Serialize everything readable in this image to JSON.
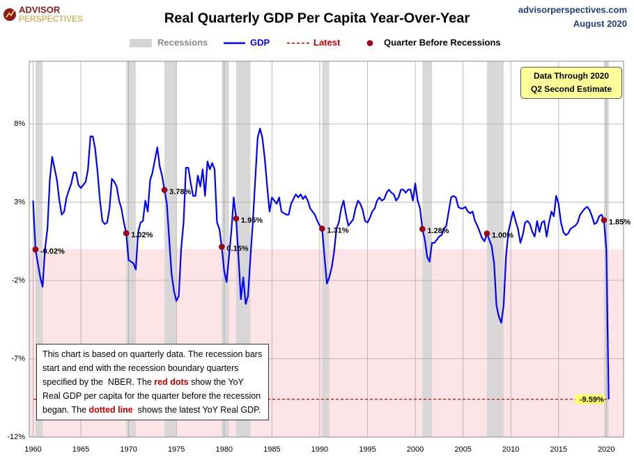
{
  "chart_data": {
    "type": "line",
    "title": "Real Quarterly GDP Per Capita Year-Over-Year",
    "logo": [
      "ADVISOR",
      "PERSPECTIVES"
    ],
    "source": "advisorperspectives.com",
    "date": "August 2020",
    "annotation": [
      "Data Through 2020",
      "Q2 Second Estimate"
    ],
    "note": [
      "This chart is based on quarterly data. The recession bars start and end with the recession boundary quarters specified by the  NBER. The ",
      "red dots",
      " show the YoY Real GDP per capita for the quarter before the recession began. The ",
      "dotted line",
      "  shows the latest YoY Real GDP."
    ],
    "xlim": [
      1959.6,
      2021.8
    ],
    "xticks": [
      1960,
      1965,
      1970,
      1975,
      1980,
      1985,
      1990,
      1995,
      2000,
      2005,
      2010,
      2015,
      2020
    ],
    "ylim": [
      -12,
      12
    ],
    "yticks": [
      {
        "value": -12,
        "label": "-12%"
      },
      {
        "value": -7,
        "label": "-7%"
      },
      {
        "value": -2,
        "label": "-2%"
      },
      {
        "value": 3,
        "label": "3%"
      },
      {
        "value": 8,
        "label": "8%"
      }
    ],
    "grid": true,
    "negative_shade": "#fde4e6",
    "recessions": {
      "name": "Recessions",
      "color": "#d4d4d4",
      "spans": [
        [
          1960.25,
          1961
        ],
        [
          1969.75,
          1970.75
        ],
        [
          1973.75,
          1975
        ],
        [
          1979.75,
          1980.5
        ],
        [
          1981.25,
          1982.75
        ],
        [
          1990.25,
          1991
        ],
        [
          2000.75,
          2001.75
        ],
        [
          2007.5,
          2009.25
        ],
        [
          2019.75,
          2020.25
        ]
      ]
    },
    "series": [
      {
        "name": "GDP",
        "color": "#0000ff",
        "x": [
          1960,
          1960.25,
          1960.75,
          1961,
          1961.25,
          1961.5,
          1961.75,
          1962,
          1962.5,
          1962.75,
          1963,
          1963.25,
          1963.5,
          1964,
          1964.25,
          1964.5,
          1964.75,
          1965,
          1965.5,
          1965.75,
          1966,
          1966.25,
          1966.5,
          1966.75,
          1967,
          1967.25,
          1967.5,
          1967.75,
          1968,
          1968.25,
          1968.5,
          1968.75,
          1969,
          1969.25,
          1969.5,
          1969.75,
          1970,
          1970.25,
          1970.5,
          1970.75,
          1971,
          1971.25,
          1971.5,
          1971.75,
          1972,
          1972.25,
          1972.5,
          1972.75,
          1973,
          1973.25,
          1973.5,
          1973.75,
          1974,
          1974.25,
          1974.5,
          1974.75,
          1975,
          1975.25,
          1975.5,
          1975.75,
          1976,
          1976.25,
          1976.5,
          1976.75,
          1977,
          1977.25,
          1977.5,
          1977.75,
          1978,
          1978.25,
          1978.5,
          1978.75,
          1979,
          1979.25,
          1979.5,
          1979.75,
          1980,
          1980.25,
          1980.5,
          1980.75,
          1981,
          1981.25,
          1981.5,
          1981.75,
          1982,
          1982.25,
          1982.5,
          1982.75,
          1983,
          1983.25,
          1983.5,
          1983.75,
          1984,
          1984.25,
          1984.5,
          1984.75,
          1985,
          1985.25,
          1985.5,
          1985.75,
          1986,
          1986.25,
          1986.5,
          1986.75,
          1987,
          1987.25,
          1987.5,
          1987.75,
          1988,
          1988.25,
          1988.5,
          1988.75,
          1989,
          1989.25,
          1989.5,
          1989.75,
          1990,
          1990.25,
          1990.5,
          1990.75,
          1991,
          1991.25,
          1991.5,
          1991.75,
          1992,
          1992.25,
          1992.5,
          1992.75,
          1993,
          1993.25,
          1993.5,
          1993.75,
          1994,
          1994.25,
          1994.5,
          1994.75,
          1995,
          1995.25,
          1995.5,
          1995.75,
          1996,
          1996.25,
          1996.5,
          1996.75,
          1997,
          1997.25,
          1997.5,
          1997.75,
          1998,
          1998.25,
          1998.5,
          1998.75,
          1999,
          1999.25,
          1999.5,
          1999.75,
          2000,
          2000.25,
          2000.5,
          2000.75,
          2001,
          2001.25,
          2001.5,
          2001.75,
          2002,
          2002.25,
          2002.5,
          2002.75,
          2003,
          2003.25,
          2003.5,
          2003.75,
          2004,
          2004.25,
          2004.5,
          2004.75,
          2005,
          2005.25,
          2005.5,
          2005.75,
          2006,
          2006.25,
          2006.5,
          2006.75,
          2007,
          2007.25,
          2007.5,
          2007.75,
          2008,
          2008.25,
          2008.5,
          2008.75,
          2009,
          2009.25,
          2009.5,
          2009.75,
          2010,
          2010.25,
          2010.5,
          2010.75,
          2011,
          2011.25,
          2011.5,
          2011.75,
          2012,
          2012.25,
          2012.5,
          2012.75,
          2013,
          2013.25,
          2013.5,
          2013.75,
          2014,
          2014.25,
          2014.5,
          2014.75,
          2015,
          2015.25,
          2015.5,
          2015.75,
          2016,
          2016.25,
          2016.5,
          2016.75,
          2017,
          2017.25,
          2017.5,
          2017.75,
          2018,
          2018.25,
          2018.5,
          2018.75,
          2019,
          2019.25,
          2019.5,
          2019.75,
          2020,
          2020.25
        ],
        "values": [
          3.1,
          -0.02,
          -1.8,
          -2.4,
          0,
          1.3,
          4.4,
          5.9,
          4.4,
          3.1,
          2.2,
          2.4,
          3.3,
          4.2,
          4.9,
          4.9,
          4.1,
          3.9,
          4.3,
          5.1,
          7.2,
          7.2,
          6.4,
          4.9,
          3.1,
          1.8,
          1.6,
          1.7,
          2.6,
          4.5,
          4.3,
          4.0,
          3.1,
          2.6,
          1.7,
          1.02,
          -0.7,
          -0.8,
          -0.9,
          -1.3,
          1.1,
          1.7,
          1.8,
          3.1,
          2.4,
          4.4,
          4.9,
          5.7,
          6.5,
          5.3,
          4.7,
          3.78,
          2.9,
          0.6,
          -1.6,
          -2.7,
          -3.3,
          -3.0,
          0,
          1.7,
          5.2,
          5.2,
          4.2,
          3.4,
          3.4,
          4.7,
          4.0,
          5.1,
          3.4,
          5.6,
          5.1,
          5.5,
          5.1,
          1.7,
          1.3,
          0.15,
          -1.4,
          -2.1,
          -0.5,
          1.1,
          3.3,
          1.95,
          -0.5,
          -3.2,
          -1.8,
          -3.5,
          -3.0,
          -0.5,
          1.7,
          4.4,
          7.1,
          7.7,
          7.1,
          5.8,
          4.0,
          2.4,
          3.3,
          3.1,
          2.9,
          3.3,
          2.4,
          2.3,
          2.2,
          2.2,
          2.9,
          3.2,
          3.5,
          3.3,
          3.5,
          3.2,
          3.4,
          3.1,
          2.6,
          2.4,
          2.2,
          1.8,
          1.5,
          1.31,
          -0.5,
          -2.2,
          -1.8,
          -1.2,
          -0.2,
          1.3,
          1.7,
          2.6,
          3.1,
          2.2,
          1.5,
          1.7,
          1.9,
          2.6,
          3.1,
          2.9,
          2.5,
          1.8,
          1.7,
          2.0,
          2.4,
          2.6,
          3.1,
          3.3,
          3.1,
          3.2,
          3.6,
          3.8,
          3.6,
          3.5,
          3.1,
          3.3,
          3.8,
          3.8,
          3.6,
          3.8,
          3.8,
          3.1,
          4.2,
          3.1,
          2.6,
          1.28,
          0.6,
          -0.5,
          -0.8,
          0.4,
          0.4,
          0.6,
          0.8,
          0.9,
          1.3,
          1.5,
          2.4,
          3.3,
          3.4,
          3.3,
          2.7,
          2.6,
          2.6,
          2.7,
          2.4,
          2.3,
          2.4,
          1.8,
          1.5,
          1.1,
          0.7,
          0.5,
          1.0,
          0.6,
          0.2,
          -0.9,
          -3.6,
          -4.3,
          -4.7,
          -3.6,
          -0.5,
          1.1,
          1.8,
          2.4,
          1.8,
          1.3,
          0.4,
          0.9,
          1.7,
          1.8,
          1.6,
          1.1,
          0.8,
          1.8,
          1.1,
          1.7,
          1.8,
          0.8,
          1.7,
          2.4,
          2.1,
          3.4,
          2.9,
          1.7,
          1.1,
          0.9,
          1.0,
          1.3,
          1.4,
          1.5,
          1.7,
          2.2,
          2.4,
          2.6,
          2.7,
          2.5,
          2.1,
          1.6,
          1.7,
          2.1,
          2.2,
          1.85,
          0,
          -9.59
        ]
      },
      {
        "name": "Quarter Before Recessions",
        "color": "#a50021",
        "x": [
          1960.25,
          1969.75,
          1973.75,
          1979.75,
          1981.25,
          1990.25,
          2000.75,
          2007.5,
          2019.75
        ],
        "values": [
          -0.02,
          1.02,
          3.78,
          0.15,
          1.95,
          1.31,
          1.28,
          1.0,
          1.85
        ],
        "value_labels": [
          "-0.02%",
          "1.02%",
          "3.78%",
          "0.15%",
          "1.95%",
          "1.31%",
          "1.28%",
          "1.00%",
          "1.85%"
        ]
      }
    ],
    "latest": {
      "name": "Latest",
      "color": "#c00000",
      "value": -9.59,
      "value_label": "-9.59%"
    }
  }
}
